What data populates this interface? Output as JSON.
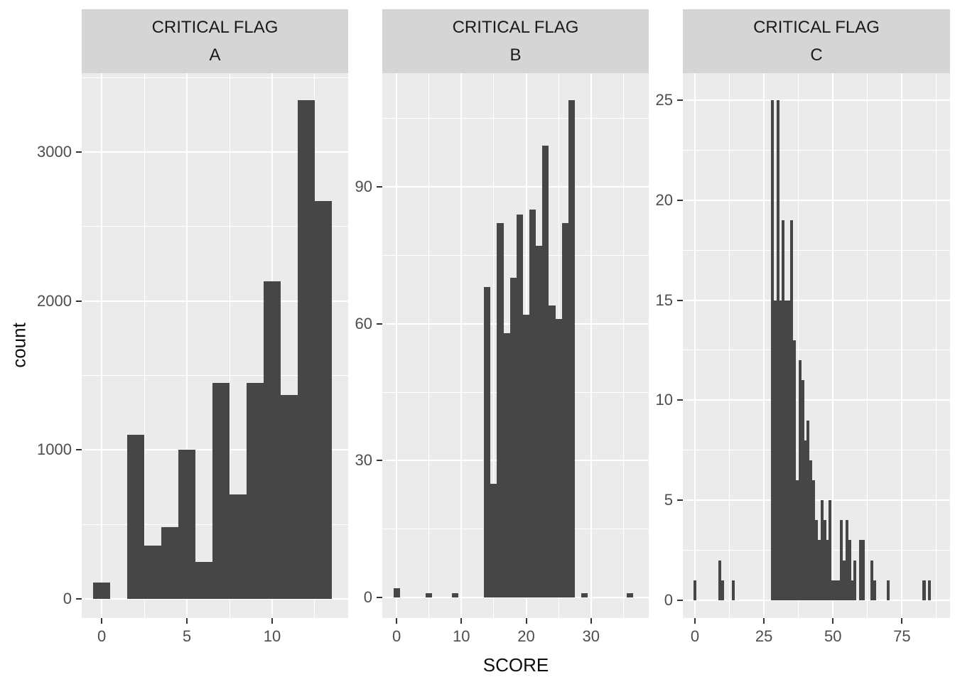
{
  "figure": {
    "xlabel": "SCORE",
    "ylabel": "count"
  },
  "style": {
    "panel_bg": "#EBEBEB",
    "strip_bg": "#D5D5D5",
    "bar_fill": "#464646",
    "grid_color": "#FFFFFF",
    "axis_text_color": "#4D4D4D",
    "strip_text_color": "#1A1A1A"
  },
  "chart_data": [
    {
      "type": "bar",
      "strip_title": "CRITICAL FLAG",
      "facet_label": "A",
      "xlabel": "SCORE",
      "ylabel": "count",
      "grid": true,
      "legend": "none",
      "binwidth": 1,
      "bars": [
        [
          0,
          110
        ],
        [
          2,
          1100
        ],
        [
          3,
          360
        ],
        [
          4,
          480
        ],
        [
          5,
          1000
        ],
        [
          6,
          250
        ],
        [
          7,
          1450
        ],
        [
          8,
          700
        ],
        [
          9,
          1450
        ],
        [
          10,
          2130
        ],
        [
          11,
          1370
        ],
        [
          12,
          3350
        ],
        [
          13,
          2670
        ]
      ],
      "xlim": [
        -1.17,
        14.46
      ],
      "ylim": [
        -129,
        3530
      ],
      "x_tick_values": [
        0,
        5,
        10
      ],
      "x_tick_labels": [
        "0",
        "5",
        "10"
      ],
      "y_tick_values": [
        0,
        1000,
        2000,
        3000
      ],
      "y_tick_labels": [
        "0",
        "1000",
        "2000",
        "3000"
      ],
      "x_minor": [
        2.5,
        7.5,
        12.5
      ],
      "y_minor": [
        500,
        1500,
        2500,
        3500
      ]
    },
    {
      "type": "bar",
      "strip_title": "CRITICAL FLAG",
      "facet_label": "B",
      "xlabel": "SCORE",
      "ylabel": "count",
      "grid": true,
      "legend": "none",
      "binwidth": 1,
      "bars": [
        [
          0,
          2
        ],
        [
          5,
          1
        ],
        [
          9,
          1
        ],
        [
          14,
          68
        ],
        [
          15,
          25
        ],
        [
          16,
          82
        ],
        [
          17,
          58
        ],
        [
          18,
          70
        ],
        [
          19,
          84
        ],
        [
          20,
          62
        ],
        [
          21,
          85
        ],
        [
          22,
          77
        ],
        [
          23,
          99
        ],
        [
          24,
          64
        ],
        [
          25,
          61
        ],
        [
          26,
          82
        ],
        [
          27,
          109
        ],
        [
          29,
          1
        ],
        [
          36,
          1
        ]
      ],
      "xlim": [
        -2.2,
        38.9
      ],
      "ylim": [
        -4.5,
        114.9
      ],
      "x_tick_values": [
        0,
        10,
        20,
        30
      ],
      "x_tick_labels": [
        "0",
        "10",
        "20",
        "30"
      ],
      "y_tick_values": [
        0,
        30,
        60,
        90
      ],
      "y_tick_labels": [
        "0",
        "30",
        "60",
        "90"
      ],
      "x_minor": [
        5,
        15,
        25,
        35
      ],
      "y_minor": [
        15,
        45,
        75,
        105
      ]
    },
    {
      "type": "bar",
      "strip_title": "CRITICAL FLAG",
      "facet_label": "C",
      "xlabel": "SCORE",
      "ylabel": "count",
      "grid": true,
      "legend": "none",
      "binwidth": 1.05,
      "bars": [
        [
          0,
          1
        ],
        [
          9,
          2
        ],
        [
          10,
          1
        ],
        [
          14,
          1
        ],
        [
          28,
          25
        ],
        [
          29,
          15
        ],
        [
          30,
          25
        ],
        [
          31,
          15
        ],
        [
          32,
          19
        ],
        [
          33,
          15
        ],
        [
          34,
          15
        ],
        [
          35,
          19
        ],
        [
          36,
          13
        ],
        [
          37,
          6
        ],
        [
          38,
          12
        ],
        [
          39,
          11
        ],
        [
          40,
          8
        ],
        [
          41,
          9
        ],
        [
          42,
          7
        ],
        [
          43,
          6
        ],
        [
          44,
          4
        ],
        [
          45,
          3
        ],
        [
          46,
          5
        ],
        [
          47,
          4
        ],
        [
          48,
          3
        ],
        [
          49,
          5
        ],
        [
          50,
          1
        ],
        [
          51,
          1
        ],
        [
          52,
          1
        ],
        [
          53,
          4
        ],
        [
          54,
          2
        ],
        [
          55,
          4
        ],
        [
          56,
          3
        ],
        [
          57,
          1
        ],
        [
          58,
          2
        ],
        [
          60,
          3
        ],
        [
          61,
          3
        ],
        [
          64,
          2
        ],
        [
          65,
          1
        ],
        [
          70,
          1
        ],
        [
          83,
          1
        ],
        [
          85,
          1
        ]
      ],
      "xlim": [
        -4.37,
        92.4
      ],
      "ylim": [
        -0.89,
        26.35
      ],
      "x_tick_values": [
        0,
        25,
        50,
        75
      ],
      "x_tick_labels": [
        "0",
        "25",
        "50",
        "75"
      ],
      "y_tick_values": [
        0,
        5,
        10,
        15,
        20,
        25
      ],
      "y_tick_labels": [
        "0",
        "5",
        "10",
        "15",
        "20",
        "25"
      ],
      "x_minor": [
        12.5,
        37.5,
        62.5,
        87.5
      ],
      "y_minor": [
        2.5,
        7.5,
        12.5,
        17.5,
        22.5
      ]
    }
  ]
}
